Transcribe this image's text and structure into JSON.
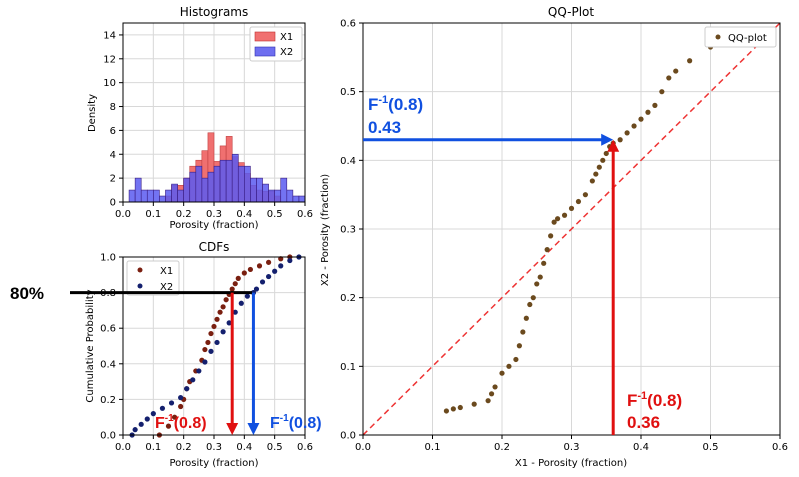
{
  "chart_data": [
    {
      "type": "bar",
      "title": "Histograms",
      "xlabel": "Porosity (fraction)",
      "ylabel": "Density",
      "xlim": [
        0,
        0.6
      ],
      "ylim": [
        0,
        15
      ],
      "xticks": [
        "0.0",
        "0.1",
        "0.2",
        "0.3",
        "0.4",
        "0.5",
        "0.6"
      ],
      "yticks": [
        "0",
        "2",
        "4",
        "6",
        "8",
        "10",
        "12",
        "14"
      ],
      "grid": true,
      "legend": "top-right",
      "bin_width": 0.02,
      "series": [
        {
          "name": "X1",
          "color": "#f07070",
          "bins": [
            {
              "x": 0.14,
              "v": 0.5
            },
            {
              "x": 0.16,
              "v": 1.4
            },
            {
              "x": 0.18,
              "v": 1.4
            },
            {
              "x": 0.2,
              "v": 2.0
            },
            {
              "x": 0.22,
              "v": 3.0
            },
            {
              "x": 0.24,
              "v": 3.5
            },
            {
              "x": 0.26,
              "v": 4.3
            },
            {
              "x": 0.28,
              "v": 5.8
            },
            {
              "x": 0.3,
              "v": 3.4
            },
            {
              "x": 0.32,
              "v": 4.7
            },
            {
              "x": 0.34,
              "v": 5.5
            },
            {
              "x": 0.36,
              "v": 3.8
            },
            {
              "x": 0.38,
              "v": 3.3
            },
            {
              "x": 0.4,
              "v": 2.4
            },
            {
              "x": 0.42,
              "v": 1.4
            },
            {
              "x": 0.44,
              "v": 1.0
            },
            {
              "x": 0.46,
              "v": 0.9
            },
            {
              "x": 0.48,
              "v": 0.9
            },
            {
              "x": 0.5,
              "v": 0.5
            }
          ]
        },
        {
          "name": "X2",
          "color": "#6e6ef0",
          "bins": [
            {
              "x": 0.02,
              "v": 1.0
            },
            {
              "x": 0.04,
              "v": 2.0
            },
            {
              "x": 0.06,
              "v": 1.0
            },
            {
              "x": 0.08,
              "v": 1.0
            },
            {
              "x": 0.1,
              "v": 1.0
            },
            {
              "x": 0.12,
              "v": 0.5
            },
            {
              "x": 0.14,
              "v": 1.0
            },
            {
              "x": 0.16,
              "v": 1.5
            },
            {
              "x": 0.18,
              "v": 1.0
            },
            {
              "x": 0.2,
              "v": 2.0
            },
            {
              "x": 0.22,
              "v": 2.5
            },
            {
              "x": 0.24,
              "v": 3.0
            },
            {
              "x": 0.26,
              "v": 2.0
            },
            {
              "x": 0.28,
              "v": 2.5
            },
            {
              "x": 0.3,
              "v": 3.0
            },
            {
              "x": 0.32,
              "v": 3.5
            },
            {
              "x": 0.34,
              "v": 3.5
            },
            {
              "x": 0.36,
              "v": 4.0
            },
            {
              "x": 0.38,
              "v": 3.0
            },
            {
              "x": 0.4,
              "v": 3.0
            },
            {
              "x": 0.42,
              "v": 2.0
            },
            {
              "x": 0.44,
              "v": 2.0
            },
            {
              "x": 0.46,
              "v": 1.5
            },
            {
              "x": 0.48,
              "v": 1.0
            },
            {
              "x": 0.5,
              "v": 1.0
            },
            {
              "x": 0.52,
              "v": 2.0
            },
            {
              "x": 0.54,
              "v": 1.0
            },
            {
              "x": 0.56,
              "v": 0.5
            },
            {
              "x": 0.58,
              "v": 0.5
            }
          ]
        }
      ]
    },
    {
      "type": "scatter",
      "title": "CDFs",
      "xlabel": "Porosity (fraction)",
      "ylabel": "Cumulative Probability",
      "xlim": [
        0,
        0.6
      ],
      "ylim": [
        0,
        1.0
      ],
      "xticks": [
        "0.0",
        "0.1",
        "0.2",
        "0.3",
        "0.4",
        "0.5",
        "0.6"
      ],
      "yticks": [
        "0.0",
        "0.2",
        "0.4",
        "0.6",
        "0.8",
        "1.0"
      ],
      "grid": true,
      "legend": "top-left",
      "series": [
        {
          "name": "X1",
          "color": "#7a1f10",
          "points": [
            [
              0.12,
              0.0
            ],
            [
              0.15,
              0.05
            ],
            [
              0.17,
              0.1
            ],
            [
              0.19,
              0.16
            ],
            [
              0.2,
              0.2
            ],
            [
              0.21,
              0.26
            ],
            [
              0.22,
              0.3
            ],
            [
              0.24,
              0.36
            ],
            [
              0.26,
              0.42
            ],
            [
              0.27,
              0.48
            ],
            [
              0.28,
              0.52
            ],
            [
              0.29,
              0.57
            ],
            [
              0.3,
              0.61
            ],
            [
              0.31,
              0.65
            ],
            [
              0.32,
              0.69
            ],
            [
              0.33,
              0.72
            ],
            [
              0.34,
              0.76
            ],
            [
              0.35,
              0.79
            ],
            [
              0.36,
              0.82
            ],
            [
              0.37,
              0.85
            ],
            [
              0.38,
              0.88
            ],
            [
              0.4,
              0.91
            ],
            [
              0.42,
              0.93
            ],
            [
              0.45,
              0.95
            ],
            [
              0.48,
              0.97
            ],
            [
              0.52,
              0.99
            ],
            [
              0.55,
              1.0
            ]
          ]
        },
        {
          "name": "X2",
          "color": "#14206e",
          "points": [
            [
              0.03,
              0.0
            ],
            [
              0.04,
              0.03
            ],
            [
              0.06,
              0.06
            ],
            [
              0.08,
              0.09
            ],
            [
              0.1,
              0.12
            ],
            [
              0.13,
              0.15
            ],
            [
              0.16,
              0.18
            ],
            [
              0.19,
              0.21
            ],
            [
              0.21,
              0.26
            ],
            [
              0.23,
              0.31
            ],
            [
              0.25,
              0.36
            ],
            [
              0.27,
              0.41
            ],
            [
              0.29,
              0.47
            ],
            [
              0.31,
              0.52
            ],
            [
              0.33,
              0.58
            ],
            [
              0.35,
              0.63
            ],
            [
              0.37,
              0.69
            ],
            [
              0.39,
              0.74
            ],
            [
              0.41,
              0.78
            ],
            [
              0.43,
              0.8
            ],
            [
              0.44,
              0.82
            ],
            [
              0.46,
              0.86
            ],
            [
              0.48,
              0.89
            ],
            [
              0.5,
              0.92
            ],
            [
              0.52,
              0.95
            ],
            [
              0.55,
              0.98
            ],
            [
              0.58,
              1.0
            ]
          ]
        }
      ],
      "annotations": {
        "level_label": "80%",
        "level": 0.8,
        "f1_label": "F",
        "f2_label": "F",
        "sup": "-1",
        "arg": "(0.8)",
        "x1_quantile": 0.36,
        "x2_quantile": 0.43
      }
    },
    {
      "type": "scatter",
      "title": "QQ-Plot",
      "xlabel": "X1 - Porosity (fraction)",
      "ylabel": "X2 - Porosity (fraction)",
      "xlim": [
        0,
        0.6
      ],
      "ylim": [
        0,
        0.6
      ],
      "xticks": [
        "0.0",
        "0.1",
        "0.2",
        "0.3",
        "0.4",
        "0.5",
        "0.6"
      ],
      "yticks": [
        "0.0",
        "0.1",
        "0.2",
        "0.3",
        "0.4",
        "0.5",
        "0.6"
      ],
      "grid": true,
      "legend": "top-right",
      "series": [
        {
          "name": "QQ-plot",
          "color": "#6b4a1e",
          "points": [
            [
              0.12,
              0.035
            ],
            [
              0.13,
              0.038
            ],
            [
              0.14,
              0.04
            ],
            [
              0.16,
              0.045
            ],
            [
              0.18,
              0.05
            ],
            [
              0.185,
              0.06
            ],
            [
              0.19,
              0.07
            ],
            [
              0.2,
              0.09
            ],
            [
              0.21,
              0.1
            ],
            [
              0.22,
              0.11
            ],
            [
              0.225,
              0.13
            ],
            [
              0.23,
              0.15
            ],
            [
              0.235,
              0.17
            ],
            [
              0.24,
              0.19
            ],
            [
              0.245,
              0.2
            ],
            [
              0.25,
              0.22
            ],
            [
              0.255,
              0.23
            ],
            [
              0.26,
              0.25
            ],
            [
              0.265,
              0.27
            ],
            [
              0.27,
              0.29
            ],
            [
              0.275,
              0.31
            ],
            [
              0.28,
              0.315
            ],
            [
              0.29,
              0.32
            ],
            [
              0.3,
              0.33
            ],
            [
              0.31,
              0.34
            ],
            [
              0.32,
              0.35
            ],
            [
              0.33,
              0.37
            ],
            [
              0.335,
              0.38
            ],
            [
              0.34,
              0.39
            ],
            [
              0.345,
              0.4
            ],
            [
              0.35,
              0.41
            ],
            [
              0.355,
              0.42
            ],
            [
              0.36,
              0.425
            ],
            [
              0.37,
              0.43
            ],
            [
              0.38,
              0.44
            ],
            [
              0.39,
              0.45
            ],
            [
              0.4,
              0.46
            ],
            [
              0.41,
              0.47
            ],
            [
              0.42,
              0.48
            ],
            [
              0.43,
              0.5
            ],
            [
              0.44,
              0.52
            ],
            [
              0.45,
              0.53
            ],
            [
              0.47,
              0.545
            ],
            [
              0.5,
              0.565
            ],
            [
              0.52,
              0.59
            ]
          ]
        },
        {
          "name": "",
          "color": "#ee3333",
          "points": [
            [
              0.0,
              0.0
            ],
            [
              0.6,
              0.6
            ]
          ],
          "style": "dashed"
        }
      ],
      "annotations": {
        "f_label": "F",
        "sup": "-1",
        "arg": "(0.8)",
        "x_value": "0.36",
        "y_value": "0.43",
        "x_quantile": 0.36,
        "y_quantile": 0.43
      }
    }
  ],
  "colors": {
    "red": "#e01010",
    "blue": "#1050e0",
    "grid": "#d8d8d8"
  }
}
